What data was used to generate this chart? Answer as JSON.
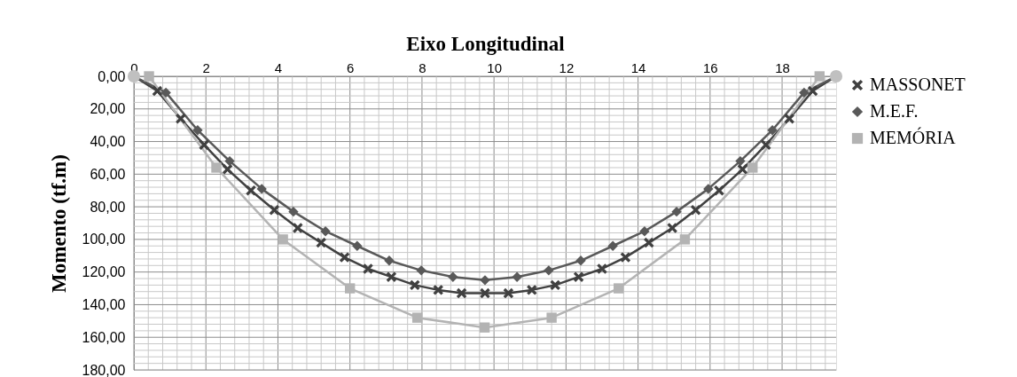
{
  "chart_data": {
    "type": "line",
    "xlabel": "Eixo Longitudinal",
    "ylabel": "Momento (tf.m)",
    "xlim": [
      0,
      19.5
    ],
    "ylim": [
      180,
      0
    ],
    "xticks": [
      0,
      {
        "value": 0.4,
        "label": null
      },
      {
        "value": 0.8,
        "label": null
      },
      {
        "value": 1.2,
        "label": null
      },
      {
        "value": 1.6,
        "label": null
      },
      2,
      {
        "value": 2.4,
        "label": null
      },
      {
        "value": 2.8,
        "label": null
      },
      {
        "value": 3.2,
        "label": null
      },
      {
        "value": 3.6,
        "label": null
      },
      4,
      {
        "value": 4.4,
        "label": null
      },
      {
        "value": 4.8,
        "label": null
      },
      {
        "value": 5.2,
        "label": null
      },
      {
        "value": 5.6,
        "label": null
      },
      6,
      {
        "value": 6.4,
        "label": null
      },
      {
        "value": 6.8,
        "label": null
      },
      {
        "value": 7.2,
        "label": null
      },
      {
        "value": 7.6,
        "label": null
      },
      8,
      {
        "value": 8.4,
        "label": null
      },
      {
        "value": 8.8,
        "label": null
      },
      {
        "value": 9.2,
        "label": null
      },
      {
        "value": 9.6,
        "label": null
      },
      10,
      {
        "value": 10.4,
        "label": null
      },
      {
        "value": 10.8,
        "label": null
      },
      {
        "value": 11.2,
        "label": null
      },
      {
        "value": 11.6,
        "label": null
      },
      12,
      {
        "value": 12.4,
        "label": null
      },
      {
        "value": 12.8,
        "label": null
      },
      {
        "value": 13.2,
        "label": null
      },
      {
        "value": 13.6,
        "label": null
      },
      14,
      {
        "value": 14.4,
        "label": null
      },
      {
        "value": 14.8,
        "label": null
      },
      {
        "value": 15.2,
        "label": null
      },
      {
        "value": 15.6,
        "label": null
      },
      16,
      {
        "value": 16.4,
        "label": null
      },
      {
        "value": 16.8,
        "label": null
      },
      {
        "value": 17.2,
        "label": null
      },
      {
        "value": 17.6,
        "label": null
      },
      18,
      {
        "value": 18.4,
        "label": null
      },
      {
        "value": 18.8,
        "label": null
      },
      {
        "value": 19.2,
        "label": null
      }
    ],
    "yticks": [
      {
        "value": 0,
        "label": "0,00"
      },
      {
        "value": 4,
        "label": null
      },
      {
        "value": 8,
        "label": null
      },
      {
        "value": 12,
        "label": null
      },
      {
        "value": 16,
        "label": null
      },
      {
        "value": 20,
        "label": "20,00"
      },
      {
        "value": 24,
        "label": null
      },
      {
        "value": 28,
        "label": null
      },
      {
        "value": 32,
        "label": null
      },
      {
        "value": 36,
        "label": null
      },
      {
        "value": 40,
        "label": "40,00"
      },
      {
        "value": 44,
        "label": null
      },
      {
        "value": 48,
        "label": null
      },
      {
        "value": 52,
        "label": null
      },
      {
        "value": 56,
        "label": null
      },
      {
        "value": 60,
        "label": "60,00"
      },
      {
        "value": 64,
        "label": null
      },
      {
        "value": 68,
        "label": null
      },
      {
        "value": 72,
        "label": null
      },
      {
        "value": 76,
        "label": null
      },
      {
        "value": 80,
        "label": "80,00"
      },
      {
        "value": 84,
        "label": null
      },
      {
        "value": 88,
        "label": null
      },
      {
        "value": 92,
        "label": null
      },
      {
        "value": 96,
        "label": null
      },
      {
        "value": 100,
        "label": "100,00"
      },
      {
        "value": 104,
        "label": null
      },
      {
        "value": 108,
        "label": null
      },
      {
        "value": 112,
        "label": null
      },
      {
        "value": 116,
        "label": null
      },
      {
        "value": 120,
        "label": "120,00"
      },
      {
        "value": 124,
        "label": null
      },
      {
        "value": 128,
        "label": null
      },
      {
        "value": 132,
        "label": null
      },
      {
        "value": 136,
        "label": null
      },
      {
        "value": 140,
        "label": "140,00"
      },
      {
        "value": 144,
        "label": null
      },
      {
        "value": 148,
        "label": null
      },
      {
        "value": 152,
        "label": null
      },
      {
        "value": 156,
        "label": null
      },
      {
        "value": 160,
        "label": "160,00"
      },
      {
        "value": 164,
        "label": null
      },
      {
        "value": 168,
        "label": null
      },
      {
        "value": 172,
        "label": null
      },
      {
        "value": 176,
        "label": null
      },
      {
        "value": 180,
        "label": "180,00"
      }
    ],
    "grid": true,
    "legend": "right",
    "line_style": "solid",
    "series": [
      {
        "name": "MASSONET",
        "color": "#404040",
        "marker": "cross",
        "x": [
          0,
          0.65,
          1.3,
          1.95,
          2.6,
          3.25,
          3.9,
          4.55,
          5.2,
          5.85,
          6.5,
          7.15,
          7.8,
          8.45,
          9.1,
          9.75,
          10.4,
          11.05,
          11.7,
          12.35,
          13,
          13.65,
          14.3,
          14.95,
          15.6,
          16.25,
          16.9,
          17.55,
          18.2,
          18.85,
          19.5
        ],
        "values": [
          0,
          9,
          26,
          42,
          57,
          70,
          82,
          93,
          102,
          111,
          118,
          123,
          128,
          131,
          133,
          133,
          133,
          131,
          128,
          123,
          118,
          111,
          102,
          93,
          82,
          70,
          57,
          42,
          26,
          9,
          0
        ]
      },
      {
        "name": "M.E.F.",
        "color": "#595959",
        "marker": "diamond",
        "x": [
          0,
          0.89,
          1.77,
          2.66,
          3.55,
          4.43,
          5.32,
          6.2,
          7.09,
          7.98,
          8.86,
          9.75,
          10.64,
          11.52,
          12.41,
          13.3,
          14.18,
          15.07,
          15.95,
          16.84,
          17.73,
          18.61,
          19.5
        ],
        "values": [
          0,
          10,
          33,
          52,
          69,
          83,
          95,
          104,
          113,
          119,
          123,
          125,
          123,
          119,
          113,
          104,
          95,
          83,
          69,
          52,
          33,
          10,
          0
        ]
      },
      {
        "name": "MEMÓRIA",
        "color": "#b3b3b3",
        "marker": "square",
        "x": [
          0.42,
          2.29,
          4.14,
          6,
          7.87,
          9.74,
          11.6,
          13.46,
          15.3,
          17.18,
          19.04
        ],
        "values": [
          0,
          56,
          100,
          130,
          148,
          154,
          148,
          130,
          100,
          56,
          0
        ]
      },
      {
        "type": "scatter",
        "color": "#c0c0c0",
        "marker": "circle",
        "x": [
          0,
          19.5
        ],
        "values": [
          0,
          0
        ]
      }
    ]
  }
}
